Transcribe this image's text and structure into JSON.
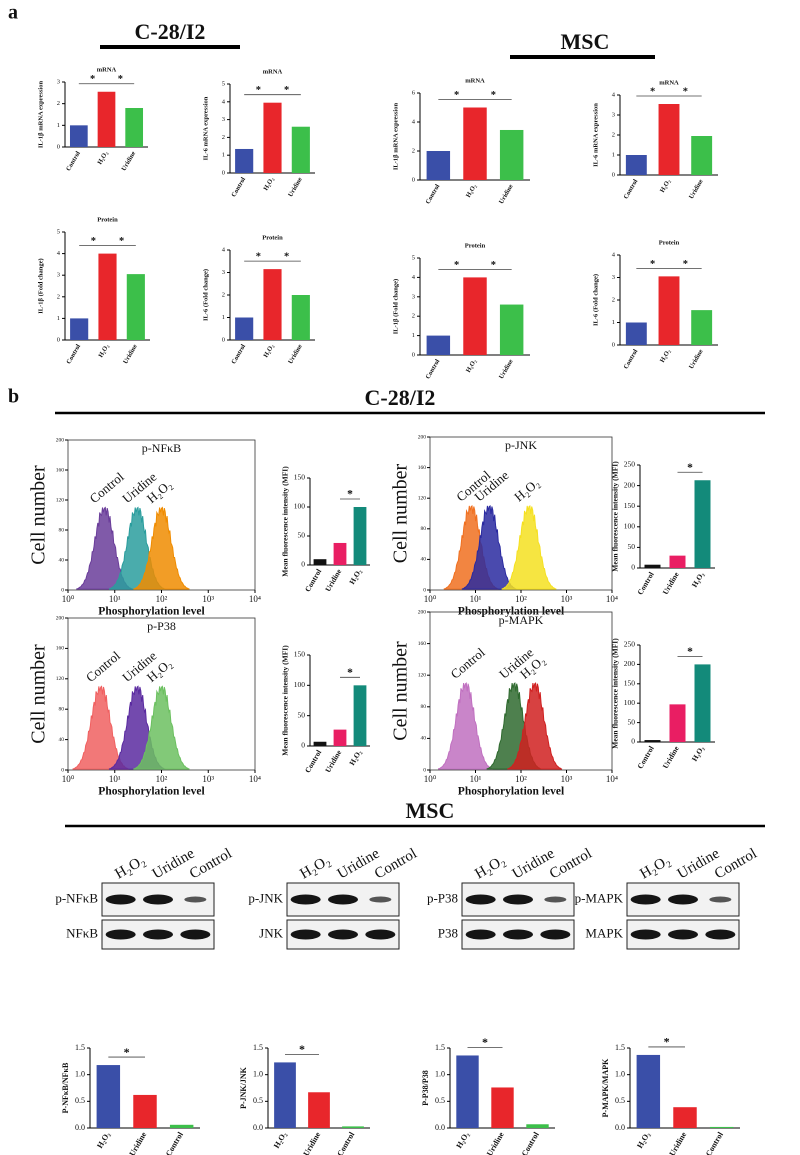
{
  "panel_labels": [
    "a",
    "b"
  ],
  "headers": [
    "C-28/I2",
    "MSC",
    "C-28/I2",
    "MSC"
  ],
  "chart_data": [
    {
      "type": "bar",
      "title": "mRNA",
      "ylabel": "IL-1β mRNA expression",
      "categories": [
        "Control",
        "H₂O₂",
        "Uridine"
      ],
      "values": [
        1,
        2.55,
        1.8
      ],
      "colors": [
        "#3a4fa8",
        "#e8262b",
        "#3cbf4a"
      ],
      "ylim": [
        0,
        3
      ],
      "yticks": [
        0,
        1,
        2,
        3
      ],
      "annotations": [
        "*",
        "*"
      ]
    },
    {
      "type": "bar",
      "title": "mRNA",
      "ylabel": "IL-6 mRNA expression",
      "categories": [
        "Control",
        "H₂O₂",
        "Uridine"
      ],
      "values": [
        1.35,
        3.95,
        2.6
      ],
      "colors": [
        "#3a4fa8",
        "#e8262b",
        "#3cbf4a"
      ],
      "ylim": [
        0,
        5
      ],
      "yticks": [
        0,
        1,
        2,
        3,
        4,
        5
      ],
      "annotations": [
        "*",
        "*"
      ]
    },
    {
      "type": "bar",
      "title": "mRNA",
      "ylabel": "IL-1β mRNA expression",
      "categories": [
        "Control",
        "H₂O₂",
        "Uridine"
      ],
      "values": [
        2,
        5,
        3.45
      ],
      "colors": [
        "#3a4fa8",
        "#e8262b",
        "#3cbf4a"
      ],
      "ylim": [
        0,
        6
      ],
      "yticks": [
        0,
        2,
        4,
        6
      ],
      "annotations": [
        "*",
        "*"
      ]
    },
    {
      "type": "bar",
      "title": "mRNA",
      "ylabel": "IL-6 mRNA expression",
      "categories": [
        "Control",
        "H₂O₂",
        "Uridine"
      ],
      "values": [
        1,
        3.55,
        1.95
      ],
      "colors": [
        "#3a4fa8",
        "#e8262b",
        "#3cbf4a"
      ],
      "ylim": [
        0,
        4
      ],
      "yticks": [
        0,
        1,
        2,
        3,
        4
      ],
      "annotations": [
        "*",
        "*"
      ]
    },
    {
      "type": "bar",
      "title": "Protein",
      "ylabel": "IL-1β (Fold change)",
      "categories": [
        "Control",
        "H₂O₂",
        "Uridine"
      ],
      "values": [
        1,
        4,
        3.05
      ],
      "colors": [
        "#3a4fa8",
        "#e8262b",
        "#3cbf4a"
      ],
      "ylim": [
        0,
        5
      ],
      "yticks": [
        0,
        1,
        2,
        3,
        4,
        5
      ],
      "annotations": [
        "*",
        "*"
      ]
    },
    {
      "type": "bar",
      "title": "Protein",
      "ylabel": "IL-6 (Fold change)",
      "categories": [
        "Control",
        "H₂O₂",
        "Uridine"
      ],
      "values": [
        1,
        3.15,
        2
      ],
      "colors": [
        "#3a4fa8",
        "#e8262b",
        "#3cbf4a"
      ],
      "ylim": [
        0,
        4
      ],
      "yticks": [
        0,
        1,
        2,
        3,
        4
      ],
      "annotations": [
        "*",
        "*"
      ]
    },
    {
      "type": "bar",
      "title": "Protein",
      "ylabel": "IL-1β (Fold change)",
      "categories": [
        "Control",
        "H₂O₂",
        "Uridine"
      ],
      "values": [
        1,
        4,
        2.6
      ],
      "colors": [
        "#3a4fa8",
        "#e8262b",
        "#3cbf4a"
      ],
      "ylim": [
        0,
        5
      ],
      "yticks": [
        0,
        1,
        2,
        3,
        4,
        5
      ],
      "annotations": [
        "*",
        "*"
      ]
    },
    {
      "type": "bar",
      "title": "Protein",
      "ylabel": "IL-6 (Fold change)",
      "categories": [
        "Control",
        "H₂O₂",
        "Uridine"
      ],
      "values": [
        1,
        3.05,
        1.55
      ],
      "colors": [
        "#3a4fa8",
        "#e8262b",
        "#3cbf4a"
      ],
      "ylim": [
        0,
        4
      ],
      "yticks": [
        0,
        1,
        2,
        3,
        4
      ],
      "annotations": [
        "*",
        "*"
      ]
    },
    {
      "type": "flow",
      "title": "p-NFκB",
      "ylabel": "Cell number",
      "xlabel": "Phosphorylation level",
      "xscale": "log",
      "xlim": [
        1,
        10000
      ],
      "xticks": [
        {
          "value": 1,
          "label": "10⁰"
        },
        {
          "value": 10,
          "label": "10¹"
        },
        {
          "value": 100,
          "label": "10²"
        },
        {
          "value": 1000,
          "label": "10³"
        },
        {
          "value": 10000,
          "label": "10⁴"
        }
      ],
      "ylim": [
        0,
        200
      ],
      "yticks": [
        0,
        40,
        80,
        120,
        160,
        200
      ],
      "series": [
        {
          "name": "Control",
          "color": "#6a3d9a",
          "peak": 6
        },
        {
          "name": "Uridine",
          "color": "#2a9d9d",
          "peak": 30
        },
        {
          "name": "H₂O₂",
          "color": "#f08c00",
          "peak": 100
        }
      ]
    },
    {
      "type": "bar",
      "ylabel": "Mean fluorescence intensity (MFI)",
      "categories": [
        "Control",
        "Uridine",
        "H₂O₂"
      ],
      "values": [
        10,
        38,
        100
      ],
      "colors": [
        "#111111",
        "#e91e63",
        "#138a7a"
      ],
      "ylim": [
        0,
        150
      ],
      "yticks": [
        0,
        50,
        100,
        150
      ],
      "annotations": [
        "*"
      ]
    },
    {
      "type": "flow",
      "title": "p-JNK",
      "ylabel": "Cell number",
      "xlabel": "Phosphorylation level",
      "xscale": "log",
      "xlim": [
        1,
        10000
      ],
      "xticks": [
        {
          "value": 1,
          "label": "10⁰"
        },
        {
          "value": 10,
          "label": "10¹"
        },
        {
          "value": 100,
          "label": "10²"
        },
        {
          "value": 1000,
          "label": "10³"
        },
        {
          "value": 10000,
          "label": "10⁴"
        }
      ],
      "ylim": [
        0,
        200
      ],
      "yticks": [
        0,
        40,
        80,
        120,
        160,
        200
      ],
      "series": [
        {
          "name": "Control",
          "color": "#f07020",
          "peak": 8
        },
        {
          "name": "Uridine",
          "color": "#2a2aa0",
          "peak": 20
        },
        {
          "name": "H₂O₂",
          "color": "#f5e020",
          "peak": 150
        }
      ]
    },
    {
      "type": "bar",
      "ylabel": "Mean fluorescence intensity (MFI)",
      "categories": [
        "Control",
        "Uridine",
        "H₂O₂"
      ],
      "values": [
        8,
        30,
        213
      ],
      "colors": [
        "#111111",
        "#e91e63",
        "#138a7a"
      ],
      "ylim": [
        0,
        250
      ],
      "yticks": [
        0,
        50,
        100,
        150,
        200,
        250
      ],
      "annotations": [
        "*"
      ]
    },
    {
      "type": "flow",
      "title": "p-P38",
      "ylabel": "Cell number",
      "xlabel": "Phosphorylation level",
      "xscale": "log",
      "xlim": [
        1,
        10000
      ],
      "xticks": [
        {
          "value": 1,
          "label": "10⁰"
        },
        {
          "value": 10,
          "label": "10¹"
        },
        {
          "value": 100,
          "label": "10²"
        },
        {
          "value": 1000,
          "label": "10³"
        },
        {
          "value": 10000,
          "label": "10⁴"
        }
      ],
      "ylim": [
        0,
        200
      ],
      "yticks": [
        0,
        40,
        80,
        120,
        160,
        200
      ],
      "series": [
        {
          "name": "Control",
          "color": "#f06060",
          "peak": 5
        },
        {
          "name": "Uridine",
          "color": "#5a2aa0",
          "peak": 30
        },
        {
          "name": "H₂O₂",
          "color": "#6cc060",
          "peak": 100
        }
      ]
    },
    {
      "type": "bar",
      "ylabel": "Mean fluorescence intensity (MFI)",
      "categories": [
        "Control",
        "Uridine",
        "H₂O₂"
      ],
      "values": [
        7,
        27,
        100
      ],
      "colors": [
        "#111111",
        "#e91e63",
        "#138a7a"
      ],
      "ylim": [
        0,
        150
      ],
      "yticks": [
        0,
        50,
        100,
        150
      ],
      "annotations": [
        "*"
      ]
    },
    {
      "type": "flow",
      "title": "p-MAPK",
      "ylabel": "Cell number",
      "xlabel": "Phosphorylation level",
      "xscale": "log",
      "xlim": [
        1,
        10000
      ],
      "xticks": [
        {
          "value": 1,
          "label": "10⁰"
        },
        {
          "value": 10,
          "label": "10¹"
        },
        {
          "value": 100,
          "label": "10²"
        },
        {
          "value": 1000,
          "label": "10³"
        },
        {
          "value": 10000,
          "label": "10⁴"
        }
      ],
      "ylim": [
        0,
        200
      ],
      "yticks": [
        0,
        40,
        80,
        120,
        160,
        200
      ],
      "series": [
        {
          "name": "Control",
          "color": "#c070c0",
          "peak": 6
        },
        {
          "name": "Uridine",
          "color": "#2f6a2f",
          "peak": 70
        },
        {
          "name": "H₂O₂",
          "color": "#d02020",
          "peak": 200
        }
      ]
    },
    {
      "type": "bar",
      "ylabel": "Mean fluorescence intensity (MFI)",
      "categories": [
        "Control",
        "Uridine",
        "H₂O₂"
      ],
      "values": [
        5,
        97,
        200
      ],
      "colors": [
        "#111111",
        "#e91e63",
        "#138a7a"
      ],
      "ylim": [
        0,
        250
      ],
      "yticks": [
        0,
        50,
        100,
        150,
        200,
        250
      ],
      "annotations": [
        "*"
      ]
    },
    {
      "type": "bar",
      "ylabel": "P-NFκB/NFκB",
      "categories": [
        "H₂O₂",
        "Uridine",
        "Control"
      ],
      "values": [
        1.18,
        0.62,
        0.06
      ],
      "colors": [
        "#3a4fa8",
        "#e8262b",
        "#3cbf4a"
      ],
      "ylim": [
        0,
        1.5
      ],
      "yticks": [
        {
          "value": 0,
          "label": "0.0"
        },
        {
          "value": 0.5,
          "label": "0.5"
        },
        {
          "value": 1,
          "label": "1.0"
        },
        {
          "value": 1.5,
          "label": "1.5"
        }
      ],
      "annotations": [
        "*"
      ]
    },
    {
      "type": "bar",
      "ylabel": "P-JNK/JNK",
      "categories": [
        "H₂O₂",
        "Uridine",
        "Control"
      ],
      "values": [
        1.23,
        0.67,
        0.03
      ],
      "colors": [
        "#3a4fa8",
        "#e8262b",
        "#3cbf4a"
      ],
      "ylim": [
        0,
        1.5
      ],
      "yticks": [
        {
          "value": 0,
          "label": "0.0"
        },
        {
          "value": 0.5,
          "label": "0.5"
        },
        {
          "value": 1,
          "label": "1.0"
        },
        {
          "value": 1.5,
          "label": "1.5"
        }
      ],
      "annotations": [
        "*"
      ]
    },
    {
      "type": "bar",
      "ylabel": "P-P38/P38",
      "categories": [
        "H₂O₂",
        "Uridine",
        "Control"
      ],
      "values": [
        1.36,
        0.76,
        0.07
      ],
      "colors": [
        "#3a4fa8",
        "#e8262b",
        "#3cbf4a"
      ],
      "ylim": [
        0,
        1.5
      ],
      "yticks": [
        {
          "value": 0,
          "label": "0.0"
        },
        {
          "value": 0.5,
          "label": "0.5"
        },
        {
          "value": 1,
          "label": "1.0"
        },
        {
          "value": 1.5,
          "label": "1.5"
        }
      ],
      "annotations": [
        "*"
      ]
    },
    {
      "type": "bar",
      "ylabel": "P-MAPK/MAPK",
      "categories": [
        "H₂O₂",
        "Uridine",
        "Control"
      ],
      "values": [
        1.37,
        0.39,
        0.02
      ],
      "colors": [
        "#3a4fa8",
        "#e8262b",
        "#3cbf4a"
      ],
      "ylim": [
        0,
        1.5
      ],
      "yticks": [
        {
          "value": 0,
          "label": "0.0"
        },
        {
          "value": 0.5,
          "label": "0.5"
        },
        {
          "value": 1,
          "label": "1.0"
        },
        {
          "value": 1.5,
          "label": "1.5"
        }
      ],
      "annotations": [
        "*"
      ]
    }
  ],
  "blots": [
    {
      "columns": [
        "H₂O₂",
        "Uridine",
        "Control"
      ],
      "rows": [
        "p-NFκB",
        "NFκB"
      ]
    },
    {
      "columns": [
        "H₂O₂",
        "Uridine",
        "Control"
      ],
      "rows": [
        "p-JNK",
        "JNK"
      ]
    },
    {
      "columns": [
        "H₂O₂",
        "Uridine",
        "Control"
      ],
      "rows": [
        "p-P38",
        "P38"
      ]
    },
    {
      "columns": [
        "H₂O₂",
        "Uridine",
        "Control"
      ],
      "rows": [
        "p-MAPK",
        "MAPK"
      ]
    }
  ]
}
